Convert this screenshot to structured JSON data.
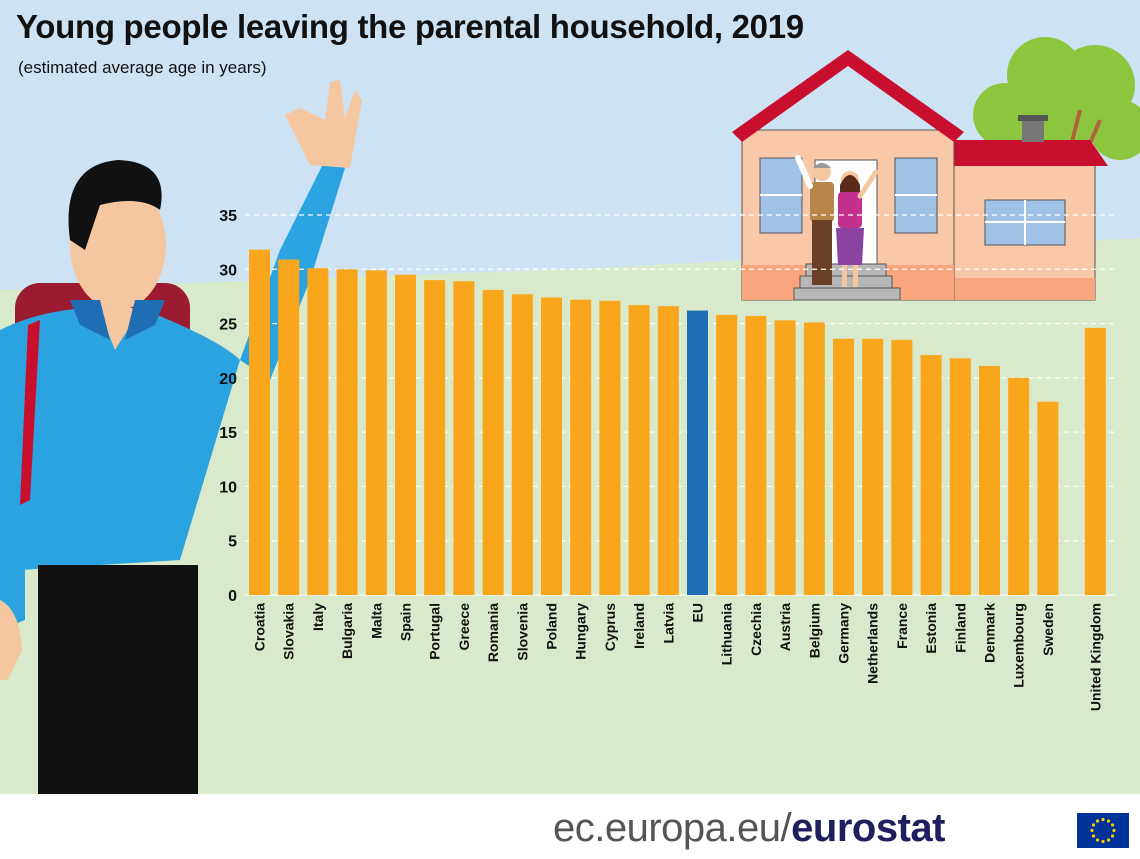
{
  "title": "Young people leaving the parental household, 2019",
  "subtitle": "(estimated average age in years)",
  "footer": {
    "site": "ec.europa.eu/",
    "brand": "eurostat"
  },
  "colors": {
    "bar": "#f9a61c",
    "highlight": "#1f6db3",
    "sky": "#cde3f4",
    "ground": "#d9e9cb",
    "text": "#111111"
  },
  "icons": [
    "waving-man-illustration",
    "house-illustration",
    "tree-illustration",
    "couple-illustration",
    "eu-flag-icon"
  ],
  "chart_data": {
    "type": "bar",
    "title": "Young people leaving the parental household, 2019",
    "subtitle": "(estimated average age in years)",
    "xlabel": "",
    "ylabel": "",
    "ylim": [
      0,
      35
    ],
    "yticks": [
      0,
      5,
      10,
      15,
      20,
      25,
      30,
      35
    ],
    "grid": true,
    "categories": [
      "Croatia",
      "Slovakia",
      "Italy",
      "Bulgaria",
      "Malta",
      "Spain",
      "Portugal",
      "Greece",
      "Romania",
      "Slovenia",
      "Poland",
      "Hungary",
      "Cyprus",
      "Ireland",
      "Latvia",
      "EU",
      "Lithuania",
      "Czechia",
      "Austria",
      "Belgium",
      "Germany",
      "Netherlands",
      "France",
      "Estonia",
      "Finland",
      "Denmark",
      "Luxembourg",
      "Sweden",
      "United Kingdom"
    ],
    "values": [
      31.8,
      30.9,
      30.1,
      30.0,
      29.9,
      29.5,
      29.0,
      28.9,
      28.1,
      27.7,
      27.4,
      27.2,
      27.1,
      26.7,
      26.6,
      26.2,
      25.8,
      25.7,
      25.3,
      25.1,
      23.6,
      23.6,
      23.5,
      22.1,
      21.8,
      21.1,
      20.0,
      17.8,
      24.6
    ],
    "highlight": [
      "EU"
    ],
    "gap_before": [
      "United Kingdom"
    ]
  }
}
